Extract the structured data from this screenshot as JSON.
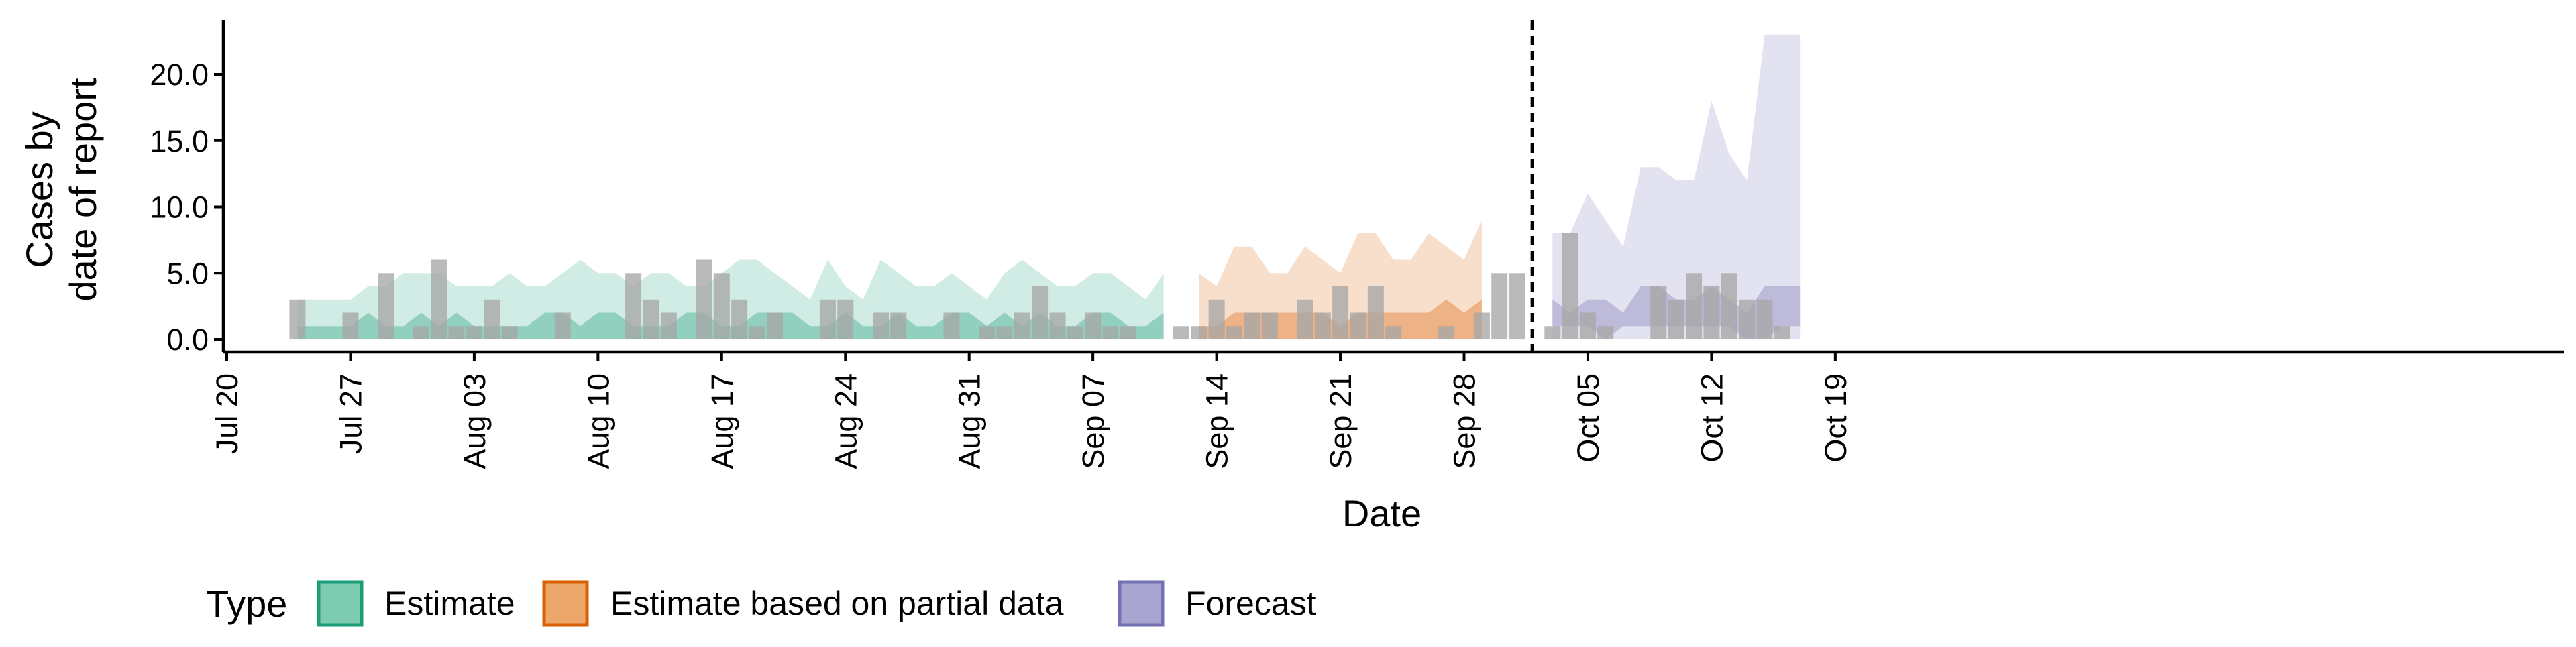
{
  "chart_data": {
    "type": "area",
    "xlabel": "Date",
    "ylabel_lines": [
      "Cases by",
      "date of report"
    ],
    "ylim": [
      -1,
      24
    ],
    "xlim": [
      "2020-07-20",
      "2020-10-21"
    ],
    "y_ticks": [
      {
        "value": 0,
        "label": "0.0"
      },
      {
        "value": 5,
        "label": "5.0"
      },
      {
        "value": 10,
        "label": "10.0"
      },
      {
        "value": 15,
        "label": "15.0"
      },
      {
        "value": 20,
        "label": "20.0"
      }
    ],
    "x_ticks": [
      {
        "date": "2020-07-20",
        "label": "Jul 20"
      },
      {
        "date": "2020-07-27",
        "label": "Jul 27"
      },
      {
        "date": "2020-08-03",
        "label": "Aug 03"
      },
      {
        "date": "2020-08-10",
        "label": "Aug 10"
      },
      {
        "date": "2020-08-17",
        "label": "Aug 17"
      },
      {
        "date": "2020-08-24",
        "label": "Aug 24"
      },
      {
        "date": "2020-08-31",
        "label": "Aug 31"
      },
      {
        "date": "2020-09-07",
        "label": "Sep 07"
      },
      {
        "date": "2020-09-14",
        "label": "Sep 14"
      },
      {
        "date": "2020-09-21",
        "label": "Sep 21"
      },
      {
        "date": "2020-09-28",
        "label": "Sep 28"
      },
      {
        "date": "2020-10-05",
        "label": "Oct 05"
      },
      {
        "date": "2020-10-12",
        "label": "Oct 12"
      },
      {
        "date": "2020-10-19",
        "label": "Oct 19"
      }
    ],
    "forecast_line_date": "2020-10-02",
    "grid": false,
    "legend": {
      "position": "bottom-left",
      "title": "Type",
      "items": [
        {
          "label": "Estimate",
          "fill": "#7ccbb0",
          "stroke": "#1b9e77"
        },
        {
          "label": "Estimate based on partial data",
          "fill": "#eda76a",
          "stroke": "#d95f02"
        },
        {
          "label": "Forecast",
          "fill": "#a9a5d1",
          "stroke": "#7570b3"
        }
      ]
    },
    "colors": {
      "estimate": "#1b9e77",
      "partial": "#d95f02",
      "forecast": "#7570b3",
      "bars": "#a6a6a6"
    },
    "bands": {
      "start": "2020-07-24",
      "estimate": {
        "n": 50,
        "outer_upper": [
          3,
          3,
          3,
          3,
          4,
          4,
          5,
          5,
          5,
          4,
          4,
          4,
          5,
          4,
          4,
          5,
          6,
          5,
          5,
          4,
          5,
          5,
          4,
          4,
          5,
          6,
          6,
          5,
          4,
          3,
          6,
          4,
          3,
          6,
          5,
          4,
          4,
          5,
          4,
          3,
          5,
          6,
          5,
          4,
          4,
          5,
          5,
          4,
          3,
          5
        ],
        "outer_lower": [
          0,
          0,
          0,
          0,
          0,
          0,
          0,
          0,
          0,
          0,
          0,
          0,
          0,
          0,
          0,
          0,
          0,
          0,
          0,
          0,
          0,
          0,
          0,
          0,
          0,
          0,
          0,
          0,
          0,
          0,
          0,
          0,
          0,
          0,
          0,
          0,
          0,
          0,
          0,
          0,
          0,
          0,
          0,
          0,
          0,
          0,
          0,
          0,
          0,
          0
        ],
        "inner_upper": [
          1,
          1,
          1,
          1,
          2,
          1,
          1,
          2,
          1,
          2,
          1,
          1,
          1,
          1,
          2,
          2,
          1,
          2,
          2,
          1,
          1,
          1,
          2,
          2,
          1,
          1,
          2,
          2,
          2,
          1,
          1,
          2,
          1,
          1,
          2,
          1,
          1,
          2,
          2,
          1,
          2,
          1,
          2,
          1,
          1,
          2,
          2,
          1,
          1,
          2
        ],
        "inner_lower": [
          0,
          0,
          0,
          0,
          0,
          0,
          0,
          0,
          0,
          0,
          0,
          0,
          0,
          0,
          0,
          0,
          0,
          0,
          0,
          0,
          0,
          0,
          0,
          0,
          0,
          0,
          0,
          0,
          0,
          0,
          0,
          0,
          0,
          0,
          0,
          0,
          0,
          0,
          0,
          0,
          0,
          0,
          0,
          0,
          0,
          0,
          0,
          0,
          0,
          0
        ]
      },
      "partial": {
        "n": 17,
        "outer_upper": [
          5,
          4,
          7,
          7,
          5,
          5,
          7,
          6,
          5,
          8,
          8,
          6,
          6,
          8,
          7,
          6,
          9
        ],
        "outer_lower": [
          0,
          0,
          0,
          0,
          0,
          0,
          0,
          0,
          0,
          0,
          0,
          0,
          0,
          0,
          0,
          0,
          0
        ],
        "inner_upper": [
          1,
          1,
          2,
          2,
          2,
          2,
          2,
          2,
          1,
          2,
          2,
          2,
          2,
          2,
          3,
          2,
          3
        ],
        "inner_lower": [
          0,
          0,
          0,
          0,
          0,
          0,
          0,
          0,
          0,
          0,
          0,
          0,
          0,
          0,
          0,
          0,
          0
        ]
      },
      "forecast": {
        "n": 15,
        "outer_upper": [
          8,
          8,
          11,
          9,
          7,
          13,
          13,
          12,
          12,
          18,
          14,
          12,
          23,
          23,
          23
        ],
        "outer_lower": [
          0,
          0,
          0,
          0,
          0,
          0,
          0,
          0,
          0,
          0,
          0,
          0,
          0,
          0,
          0
        ],
        "inner_upper": [
          3,
          2,
          3,
          3,
          2,
          4,
          4,
          3,
          3,
          4,
          3,
          2,
          4,
          4,
          4
        ],
        "inner_lower": [
          1,
          1,
          1,
          0,
          1,
          1,
          1,
          1,
          1,
          1,
          1,
          0,
          0,
          1,
          1
        ]
      }
    },
    "reported_cases": {
      "start": "2020-07-24",
      "values": [
        3,
        0,
        0,
        2,
        0,
        5,
        0,
        1,
        6,
        1,
        1,
        3,
        1,
        0,
        0,
        2,
        0,
        0,
        0,
        5,
        3,
        2,
        0,
        6,
        5,
        3,
        1,
        2,
        0,
        0,
        3,
        3,
        0,
        2,
        2,
        0,
        0,
        2,
        0,
        1,
        1,
        2,
        4,
        2,
        1,
        2,
        1,
        1,
        0,
        0,
        1,
        1,
        3,
        1,
        2,
        2,
        0,
        3,
        2,
        4,
        2,
        4,
        1,
        0,
        0,
        1,
        0,
        2,
        5,
        5,
        0,
        1,
        8,
        2,
        1,
        0,
        0,
        4,
        3,
        5,
        4,
        5,
        3,
        3,
        1
      ]
    }
  }
}
